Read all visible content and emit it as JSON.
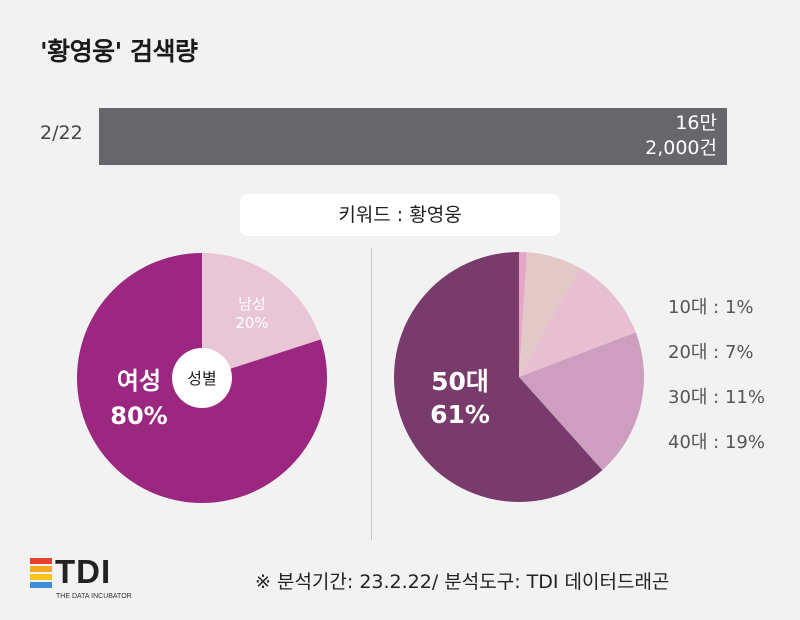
{
  "title": "'황영웅' 검색량",
  "keyword_label": "키워드 : 황영웅",
  "footer_note": "※ 분석기간: 23.2.22/ 분석도구: TDI 데이터드래곤",
  "logo": {
    "text": "TDI",
    "subtitle": "THE DATA INCUBATOR",
    "colors": [
      "#e8412c",
      "#f5a623",
      "#f5c518",
      "#3b8fd9"
    ]
  },
  "colors": {
    "female": "#9b2780",
    "male": "#e8c6d5",
    "center": "#ffffff",
    "age10": "#e6a6c6",
    "age20": "#e3c8c8",
    "age30": "#e8bfd1",
    "age40": "#cd9ebf",
    "age50": "#783b6b",
    "bar": "#67666b"
  },
  "chart_data": [
    {
      "type": "bar",
      "orientation": "horizontal",
      "categories": [
        "2/22"
      ],
      "values": [
        162000
      ],
      "value_labels": [
        "16만 2,000건"
      ]
    },
    {
      "type": "pie",
      "center_label": "성별",
      "slices": [
        {
          "label": "남성",
          "value": 20,
          "value_label": "20%"
        },
        {
          "label": "여성",
          "value": 80,
          "value_label": "80%"
        }
      ]
    },
    {
      "type": "pie",
      "slices": [
        {
          "label": "10대",
          "value": 1
        },
        {
          "label": "20대",
          "value": 7
        },
        {
          "label": "30대",
          "value": 11
        },
        {
          "label": "40대",
          "value": 19
        },
        {
          "label": "50대",
          "value": 61,
          "value_label": "61%"
        }
      ],
      "legend": [
        "10대 : 1%",
        "20대 : 7%",
        "30대 : 11%",
        "40대 : 19%"
      ]
    }
  ]
}
